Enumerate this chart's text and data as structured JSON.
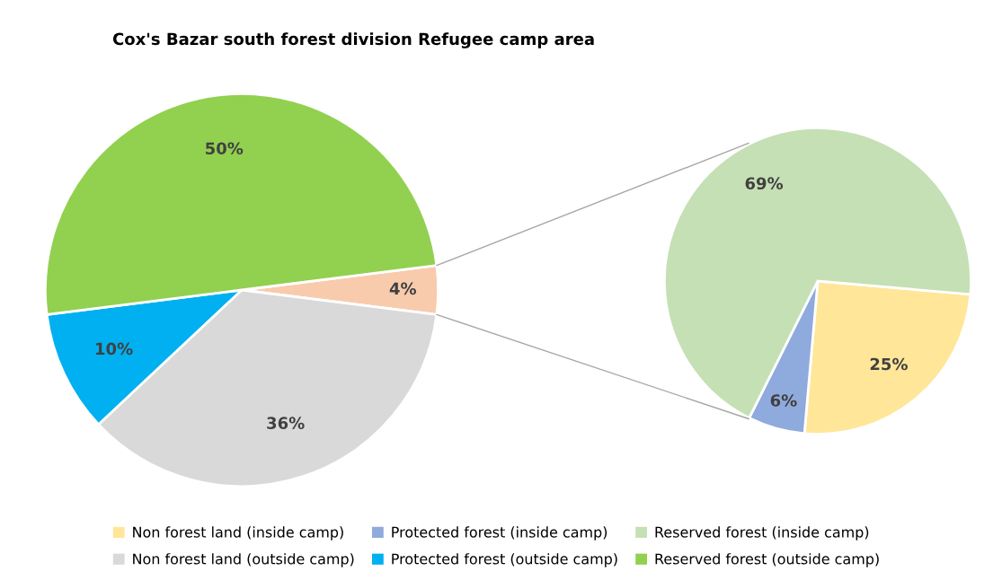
{
  "chart_data": [
    {
      "type": "pie",
      "title": "Cox's Bazar south forest division Refugee camp area",
      "categories": [
        null,
        "Non forest land (outside camp)",
        "Protected forest (outside camp)",
        "Reserved forest (outside camp)"
      ],
      "values": [
        4,
        36,
        10,
        50
      ],
      "colors": [
        "#f8cbad",
        "#d9d9d9",
        "#00b0f0",
        "#92d050"
      ],
      "value_labels": [
        "4%",
        "36%",
        "10%",
        "50%"
      ],
      "legend": "bottom"
    },
    {
      "type": "pie",
      "categories": [
        "Non forest land (inside camp)",
        "Protected forest (inside camp)",
        "Reserved forest (inside camp)"
      ],
      "values": [
        25,
        6,
        69
      ],
      "colors": [
        "#ffe699",
        "#8faadc",
        "#c5e0b4"
      ],
      "value_labels": [
        "25%",
        "6%",
        "69%"
      ],
      "legend": "bottom"
    }
  ]
}
